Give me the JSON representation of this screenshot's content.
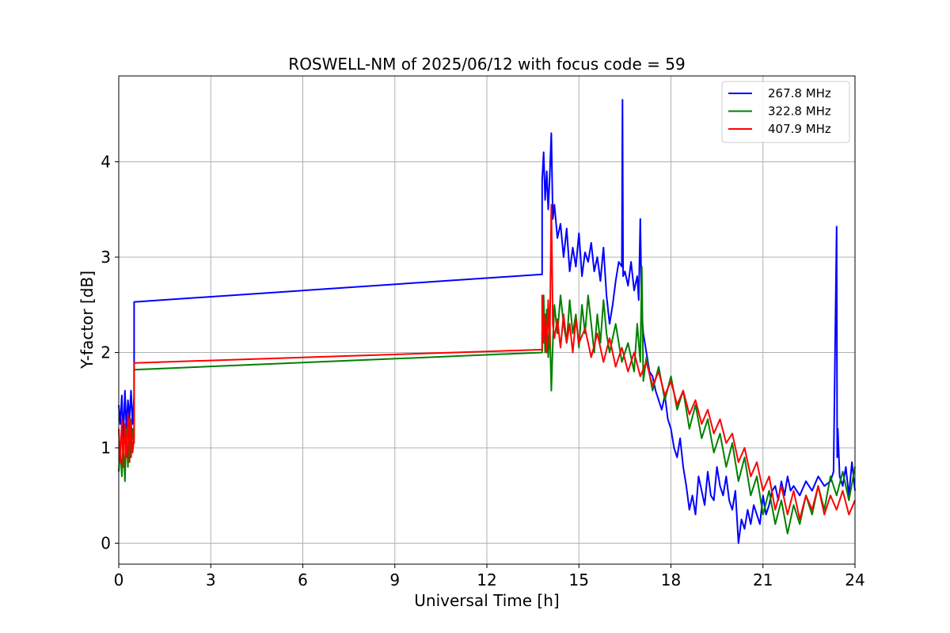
{
  "chart_data": {
    "type": "line",
    "title": "ROSWELL-NM of 2025/06/12 with focus code = 59",
    "xlabel": "Universal Time [h]",
    "ylabel": "Y-factor [dB]",
    "xlim": [
      0,
      24
    ],
    "ylim": [
      -0.22,
      4.9
    ],
    "xticks": [
      0,
      3,
      6,
      9,
      12,
      15,
      18,
      21,
      24
    ],
    "yticks": [
      0,
      1,
      2,
      3,
      4
    ],
    "grid": true,
    "legend_position": "top-right",
    "series": [
      {
        "name": "267.8 MHz",
        "color": "#0000ff",
        "x": [
          0.0,
          0.05,
          0.1,
          0.15,
          0.2,
          0.25,
          0.3,
          0.35,
          0.4,
          0.45,
          0.5,
          0.5,
          13.8,
          13.8,
          13.85,
          13.9,
          13.95,
          14.0,
          14.05,
          14.1,
          14.15,
          14.2,
          14.3,
          14.4,
          14.5,
          14.6,
          14.7,
          14.8,
          14.9,
          15.0,
          15.1,
          15.2,
          15.3,
          15.4,
          15.5,
          15.6,
          15.7,
          15.8,
          15.9,
          16.0,
          16.1,
          16.2,
          16.3,
          16.4,
          16.42,
          16.44,
          16.5,
          16.6,
          16.7,
          16.8,
          16.9,
          16.95,
          17.0,
          17.05,
          17.1,
          17.2,
          17.3,
          17.4,
          17.5,
          17.6,
          17.7,
          17.8,
          17.9,
          18.0,
          18.1,
          18.2,
          18.3,
          18.4,
          18.5,
          18.6,
          18.7,
          18.8,
          18.9,
          19.0,
          19.1,
          19.2,
          19.3,
          19.4,
          19.5,
          19.6,
          19.7,
          19.8,
          19.9,
          20.0,
          20.1,
          20.2,
          20.3,
          20.4,
          20.5,
          20.6,
          20.7,
          20.8,
          20.9,
          21.0,
          21.1,
          21.2,
          21.3,
          21.4,
          21.5,
          21.6,
          21.7,
          21.8,
          21.9,
          22.0,
          22.2,
          22.4,
          22.6,
          22.8,
          23.0,
          23.2,
          23.3,
          23.4,
          23.42,
          23.44,
          23.5,
          23.6,
          23.7,
          23.8,
          23.9,
          24.0
        ],
        "y": [
          1.45,
          1.25,
          1.55,
          1.1,
          1.6,
          1.2,
          1.5,
          1.3,
          1.6,
          1.25,
          1.55,
          2.53,
          2.82,
          3.8,
          4.1,
          3.6,
          3.9,
          3.5,
          3.85,
          4.3,
          3.4,
          3.55,
          3.2,
          3.35,
          3.0,
          3.3,
          2.85,
          3.1,
          2.9,
          3.25,
          2.8,
          3.05,
          2.95,
          3.15,
          2.85,
          3.0,
          2.75,
          3.1,
          2.6,
          2.3,
          2.5,
          2.75,
          2.95,
          2.9,
          4.65,
          2.8,
          2.85,
          2.7,
          2.95,
          2.65,
          2.8,
          2.55,
          3.4,
          2.4,
          2.2,
          2.0,
          1.8,
          1.75,
          1.6,
          1.5,
          1.4,
          1.55,
          1.3,
          1.2,
          1.0,
          0.9,
          1.1,
          0.8,
          0.6,
          0.35,
          0.5,
          0.3,
          0.7,
          0.55,
          0.4,
          0.75,
          0.5,
          0.45,
          0.8,
          0.6,
          0.5,
          0.7,
          0.45,
          0.35,
          0.55,
          0.0,
          0.25,
          0.15,
          0.35,
          0.2,
          0.4,
          0.3,
          0.2,
          0.5,
          0.3,
          0.4,
          0.55,
          0.6,
          0.45,
          0.65,
          0.5,
          0.7,
          0.55,
          0.6,
          0.5,
          0.65,
          0.55,
          0.7,
          0.6,
          0.65,
          0.75,
          3.32,
          0.9,
          1.2,
          0.7,
          0.6,
          0.8,
          0.5,
          0.85,
          0.55
        ]
      },
      {
        "name": "322.8 MHz",
        "color": "#008000",
        "x": [
          0.0,
          0.05,
          0.1,
          0.15,
          0.2,
          0.25,
          0.3,
          0.35,
          0.4,
          0.45,
          0.5,
          0.5,
          13.8,
          13.8,
          13.85,
          13.9,
          13.95,
          14.0,
          14.05,
          14.1,
          14.15,
          14.2,
          14.3,
          14.4,
          14.5,
          14.6,
          14.7,
          14.8,
          14.9,
          15.0,
          15.1,
          15.2,
          15.3,
          15.4,
          15.5,
          15.6,
          15.7,
          15.8,
          15.9,
          16.0,
          16.2,
          16.4,
          16.6,
          16.8,
          16.9,
          17.0,
          17.05,
          17.1,
          17.2,
          17.4,
          17.6,
          17.8,
          18.0,
          18.2,
          18.4,
          18.6,
          18.8,
          19.0,
          19.2,
          19.4,
          19.6,
          19.8,
          20.0,
          20.2,
          20.4,
          20.6,
          20.8,
          21.0,
          21.2,
          21.4,
          21.6,
          21.8,
          22.0,
          22.2,
          22.4,
          22.6,
          22.8,
          23.0,
          23.2,
          23.4,
          23.6,
          23.8,
          24.0
        ],
        "y": [
          0.75,
          1.0,
          0.7,
          1.1,
          0.65,
          1.2,
          0.8,
          1.3,
          0.9,
          1.2,
          1.05,
          1.82,
          2.0,
          2.2,
          2.6,
          2.0,
          2.45,
          1.95,
          2.3,
          1.6,
          2.1,
          2.5,
          2.2,
          2.6,
          2.3,
          2.1,
          2.55,
          2.2,
          2.4,
          2.05,
          2.5,
          2.2,
          2.6,
          2.3,
          2.0,
          2.4,
          2.1,
          2.55,
          2.2,
          2.0,
          2.3,
          1.9,
          2.1,
          1.8,
          2.3,
          1.9,
          2.9,
          1.7,
          1.95,
          1.6,
          1.85,
          1.5,
          1.75,
          1.4,
          1.6,
          1.2,
          1.45,
          1.1,
          1.3,
          0.95,
          1.15,
          0.8,
          1.05,
          0.65,
          0.9,
          0.5,
          0.7,
          0.3,
          0.55,
          0.2,
          0.45,
          0.1,
          0.4,
          0.2,
          0.5,
          0.3,
          0.6,
          0.35,
          0.7,
          0.5,
          0.75,
          0.45,
          0.8
        ]
      },
      {
        "name": "407.9 MHz",
        "color": "#ff0000",
        "x": [
          0.0,
          0.05,
          0.1,
          0.15,
          0.2,
          0.25,
          0.3,
          0.35,
          0.4,
          0.45,
          0.5,
          0.5,
          13.8,
          13.8,
          13.85,
          13.9,
          13.95,
          14.0,
          14.05,
          14.1,
          14.15,
          14.2,
          14.3,
          14.4,
          14.5,
          14.6,
          14.7,
          14.8,
          14.9,
          15.0,
          15.2,
          15.4,
          15.6,
          15.8,
          16.0,
          16.2,
          16.4,
          16.6,
          16.8,
          17.0,
          17.2,
          17.4,
          17.6,
          17.8,
          18.0,
          18.2,
          18.4,
          18.6,
          18.8,
          19.0,
          19.2,
          19.4,
          19.6,
          19.8,
          20.0,
          20.2,
          20.4,
          20.6,
          20.8,
          21.0,
          21.2,
          21.4,
          21.6,
          21.8,
          22.0,
          22.2,
          22.4,
          22.6,
          22.8,
          23.0,
          23.2,
          23.4,
          23.6,
          23.8,
          24.0
        ],
        "y": [
          1.2,
          0.85,
          1.3,
          0.8,
          1.25,
          0.9,
          1.35,
          0.85,
          1.3,
          0.95,
          1.1,
          1.89,
          2.03,
          2.6,
          2.1,
          2.4,
          2.0,
          2.55,
          2.05,
          3.55,
          2.3,
          2.15,
          2.35,
          2.05,
          2.4,
          2.1,
          2.3,
          2.0,
          2.35,
          2.1,
          2.25,
          1.95,
          2.2,
          1.9,
          2.15,
          1.85,
          2.05,
          1.8,
          2.0,
          1.75,
          1.9,
          1.65,
          1.8,
          1.55,
          1.7,
          1.45,
          1.6,
          1.35,
          1.5,
          1.25,
          1.4,
          1.15,
          1.3,
          1.05,
          1.15,
          0.85,
          1.0,
          0.7,
          0.85,
          0.55,
          0.7,
          0.35,
          0.6,
          0.3,
          0.55,
          0.25,
          0.5,
          0.35,
          0.6,
          0.3,
          0.5,
          0.35,
          0.55,
          0.3,
          0.45
        ]
      }
    ]
  }
}
